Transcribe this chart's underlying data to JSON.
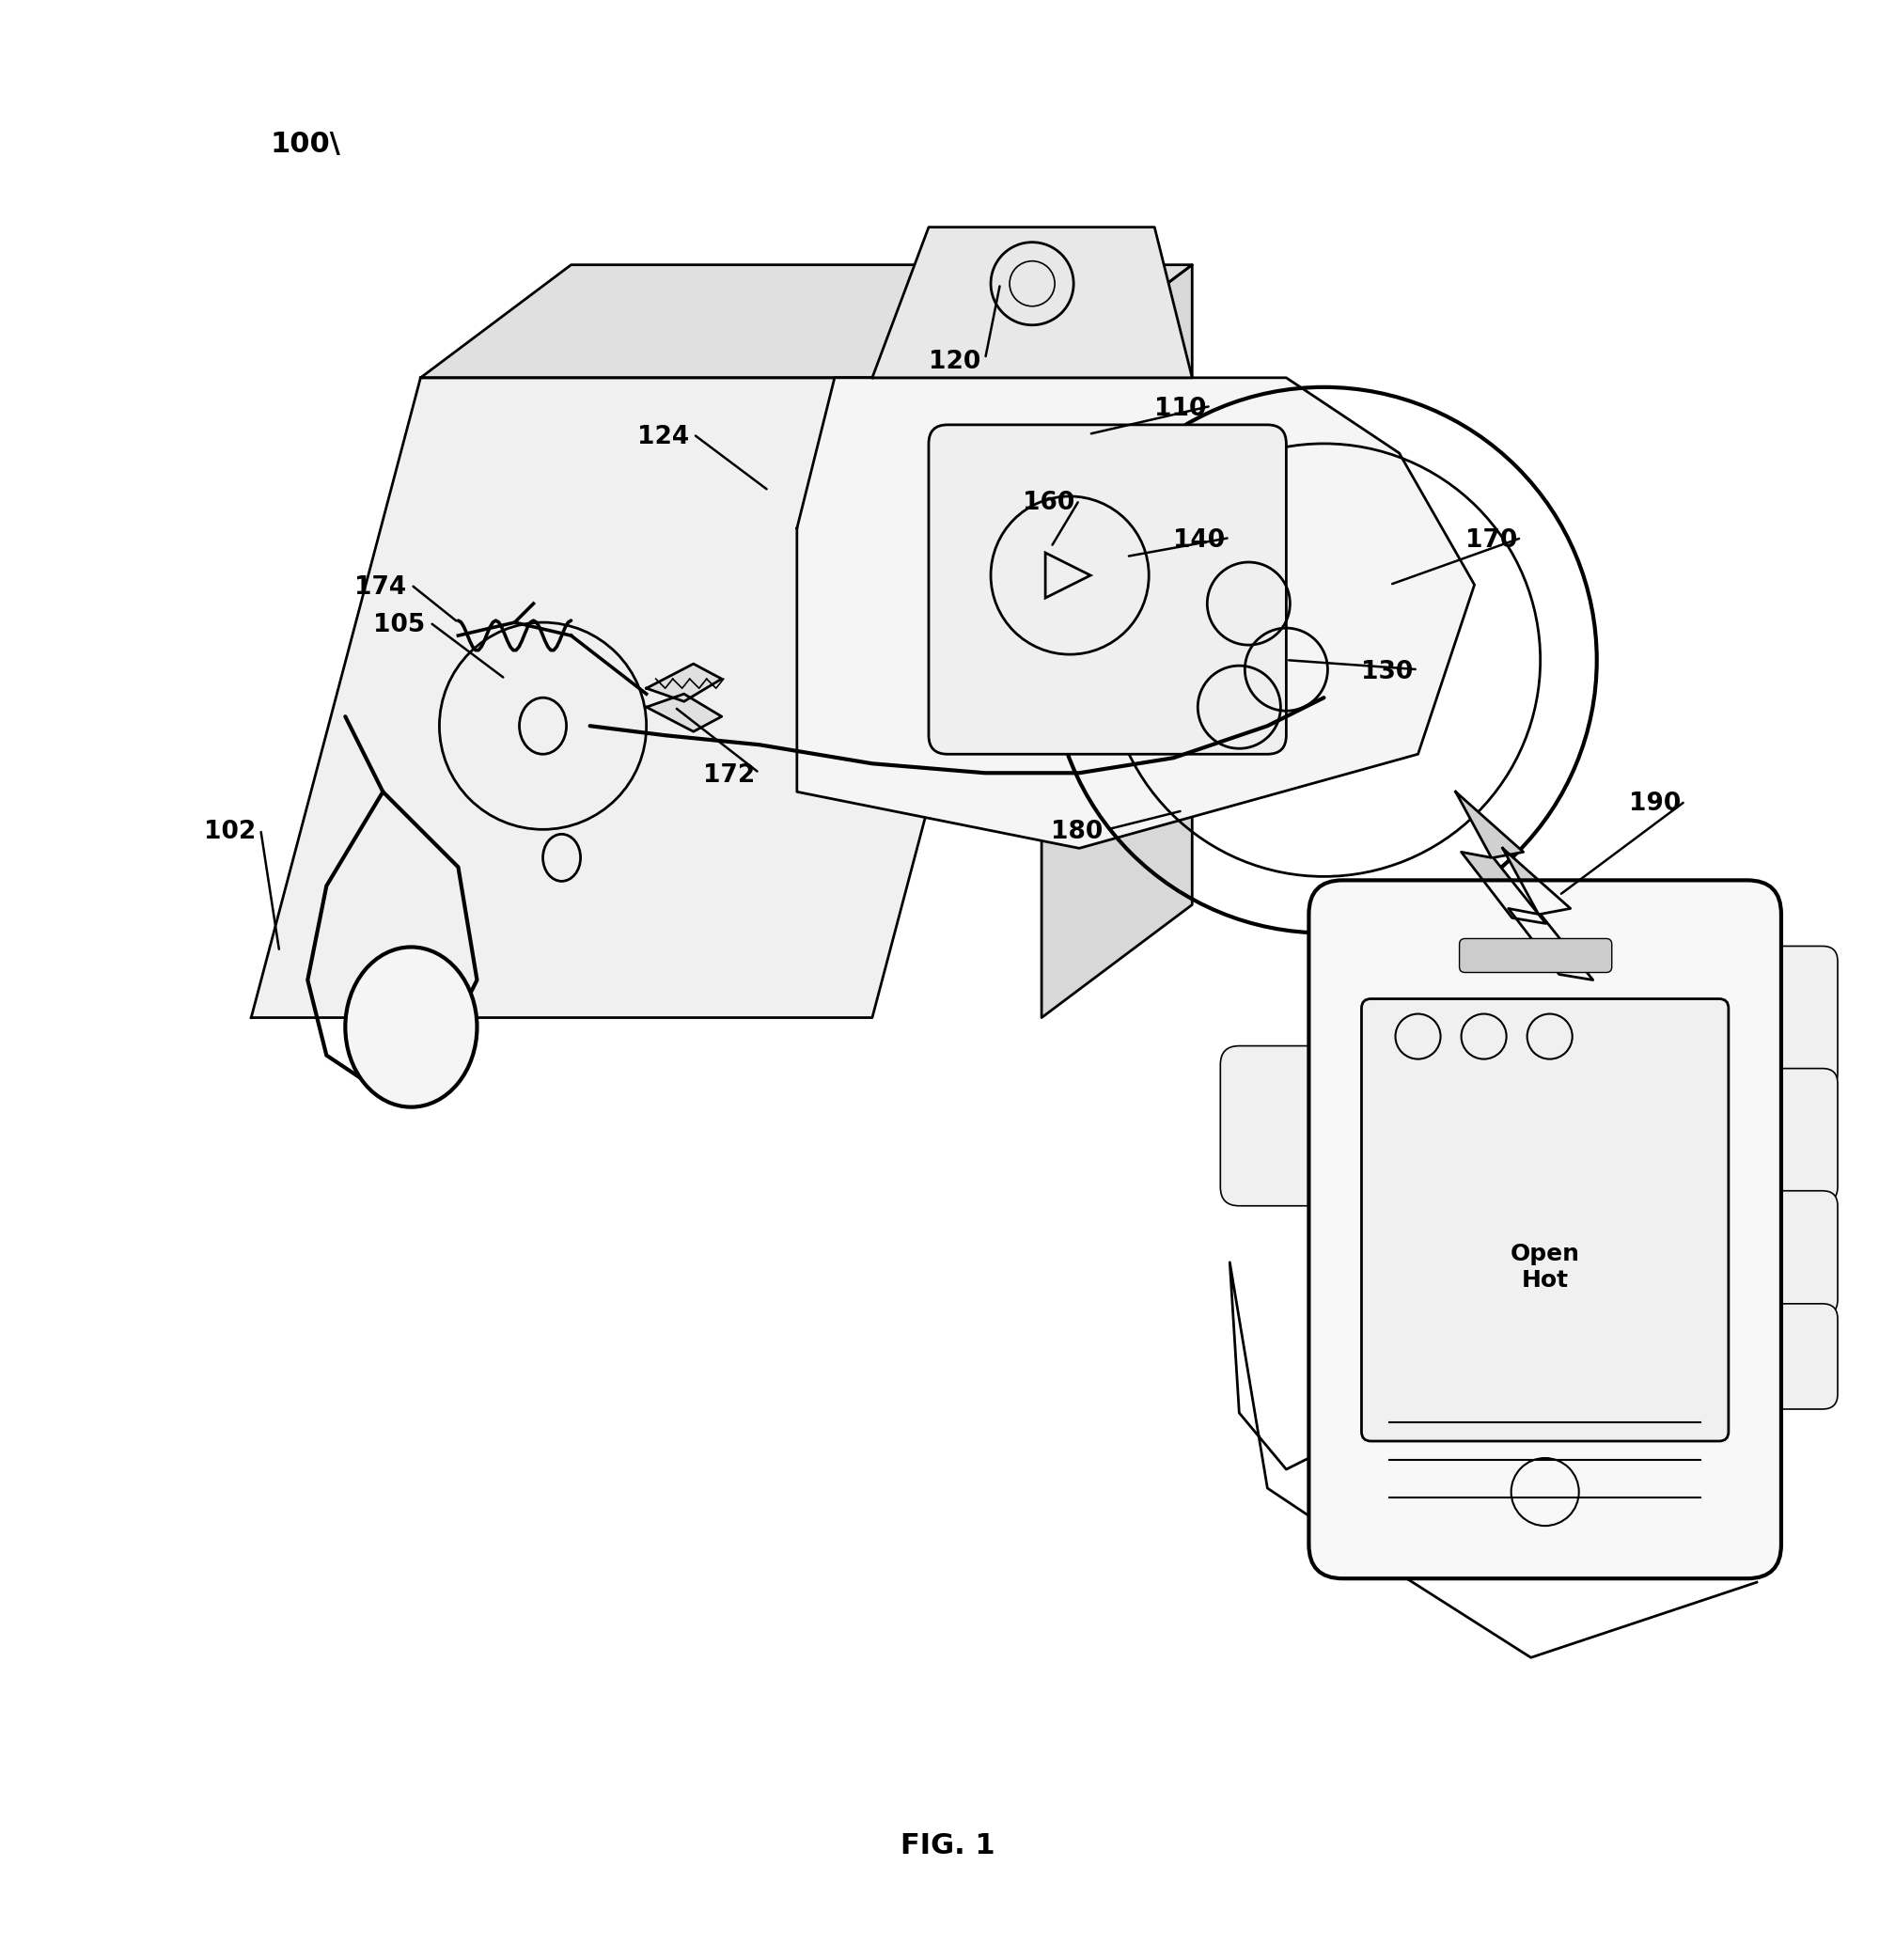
{
  "bg_color": "#ffffff",
  "line_color": "#000000",
  "fig_width": 20.16,
  "fig_height": 20.85,
  "fig_label": "FIG. 1",
  "label_100_text": "100",
  "phone_text_line1": "Open",
  "phone_text_line2": "Hot",
  "label_fontsize": 19,
  "label_100_fontsize": 22,
  "caption_fontsize": 22,
  "phone_text_fontsize": 18
}
